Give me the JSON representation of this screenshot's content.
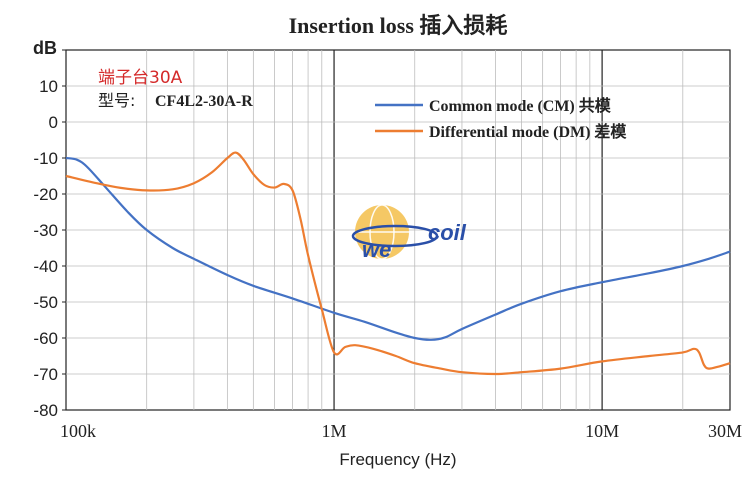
{
  "chart_data": {
    "type": "line",
    "title": "Insertion loss 插入损耗",
    "xlabel": "Frequency (Hz)",
    "ylabel": "dB",
    "x_scale": "log",
    "xlim": [
      100000,
      30000000
    ],
    "ylim": [
      -80,
      20
    ],
    "x_ticks": [
      {
        "value": 100000,
        "label": "100k"
      },
      {
        "value": 1000000,
        "label": "1M"
      },
      {
        "value": 10000000,
        "label": "10M"
      },
      {
        "value": 30000000,
        "label": "30M"
      }
    ],
    "y_ticks": [
      10,
      0,
      -10,
      -20,
      -30,
      -40,
      -50,
      -60,
      -70,
      -80
    ],
    "grid": true,
    "legend_position": "top-right",
    "series": [
      {
        "name": "Common mode (CM)  共模",
        "color": "#4472c4",
        "points": [
          [
            100000,
            -10
          ],
          [
            110000,
            -10.5
          ],
          [
            120000,
            -12.5
          ],
          [
            140000,
            -18
          ],
          [
            170000,
            -25
          ],
          [
            200000,
            -30
          ],
          [
            250000,
            -35
          ],
          [
            300000,
            -38
          ],
          [
            400000,
            -42.5
          ],
          [
            500000,
            -45.5
          ],
          [
            700000,
            -49
          ],
          [
            1000000,
            -53
          ],
          [
            1300000,
            -55.5
          ],
          [
            1700000,
            -58.5
          ],
          [
            2000000,
            -60
          ],
          [
            2300000,
            -60.5
          ],
          [
            2600000,
            -59.8
          ],
          [
            3000000,
            -57.5
          ],
          [
            4000000,
            -53.5
          ],
          [
            5000000,
            -50.5
          ],
          [
            7000000,
            -47
          ],
          [
            10000000,
            -44.5
          ],
          [
            15000000,
            -42
          ],
          [
            20000000,
            -40
          ],
          [
            25000000,
            -38
          ],
          [
            30000000,
            -36
          ]
        ]
      },
      {
        "name": "Differential mode (DM) 差模",
        "color": "#ed7d31",
        "points": [
          [
            100000,
            -15
          ],
          [
            130000,
            -17
          ],
          [
            160000,
            -18.3
          ],
          [
            200000,
            -19
          ],
          [
            250000,
            -18.7
          ],
          [
            300000,
            -17
          ],
          [
            350000,
            -14
          ],
          [
            400000,
            -10
          ],
          [
            430000,
            -8.5
          ],
          [
            460000,
            -10.5
          ],
          [
            500000,
            -14.5
          ],
          [
            550000,
            -17.5
          ],
          [
            600000,
            -18.2
          ],
          [
            650000,
            -17.2
          ],
          [
            700000,
            -19
          ],
          [
            750000,
            -27
          ],
          [
            800000,
            -37
          ],
          [
            900000,
            -52
          ],
          [
            1000000,
            -64
          ],
          [
            1100000,
            -62.5
          ],
          [
            1200000,
            -62
          ],
          [
            1400000,
            -63
          ],
          [
            1700000,
            -65
          ],
          [
            2000000,
            -67
          ],
          [
            2500000,
            -68.5
          ],
          [
            3000000,
            -69.5
          ],
          [
            4000000,
            -70
          ],
          [
            5000000,
            -69.5
          ],
          [
            7000000,
            -68.5
          ],
          [
            10000000,
            -66.5
          ],
          [
            15000000,
            -65
          ],
          [
            20000000,
            -64
          ],
          [
            22000000,
            -63
          ],
          [
            23000000,
            -64
          ],
          [
            24000000,
            -67.5
          ],
          [
            25000000,
            -68.5
          ],
          [
            27000000,
            -68
          ],
          [
            30000000,
            -67
          ]
        ]
      }
    ],
    "annotations": [
      "端子台30A",
      "型号:",
      "CF4L2-30A-R"
    ]
  },
  "logo": {
    "text_left": "we",
    "text_right": "coil"
  }
}
